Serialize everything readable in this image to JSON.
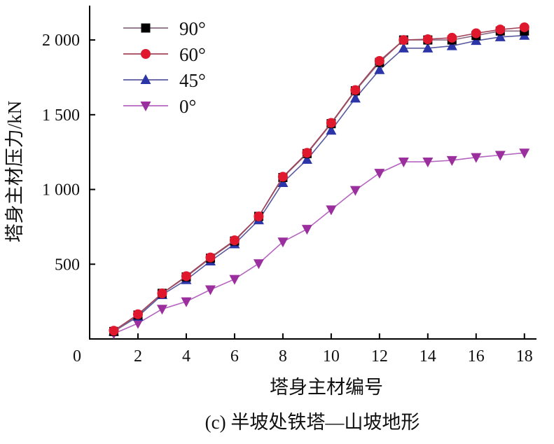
{
  "chart_data": {
    "type": "line",
    "title": "",
    "caption": "(c) 半坡处铁塔—山坡地形",
    "xlabel": "塔身主材编号",
    "ylabel": "塔身主材压力/kN",
    "x": [
      1,
      2,
      3,
      4,
      5,
      6,
      7,
      8,
      9,
      10,
      11,
      12,
      13,
      14,
      15,
      16,
      17,
      18
    ],
    "xlim": [
      0,
      18.5
    ],
    "ylim": [
      0,
      2230
    ],
    "x_ticks": [
      2,
      4,
      6,
      8,
      10,
      12,
      14,
      16,
      18
    ],
    "x_tick_labels": [
      "2",
      "4",
      "6",
      "8",
      "10",
      "12",
      "14",
      "16",
      "18"
    ],
    "y_ticks": [
      500,
      1000,
      1500,
      2000
    ],
    "y_tick_labels": [
      "500",
      "1 000",
      "1 500",
      "2 000"
    ],
    "origin_label": "0",
    "grid": false,
    "legend_position": "top-left",
    "series": [
      {
        "name": "90°",
        "marker": "square",
        "color": "#000000",
        "line_color": "#8a6a82",
        "values": [
          50,
          160,
          305,
          415,
          540,
          655,
          820,
          1080,
          1240,
          1440,
          1660,
          1850,
          2000,
          2000,
          2000,
          2030,
          2060,
          2060
        ]
      },
      {
        "name": "60°",
        "marker": "circle",
        "color": "#e0182d",
        "line_color": "#a0445a",
        "values": [
          55,
          165,
          305,
          420,
          545,
          660,
          820,
          1085,
          1245,
          1445,
          1665,
          1860,
          2000,
          2005,
          2015,
          2045,
          2070,
          2085
        ]
      },
      {
        "name": "45°",
        "marker": "triangle-up",
        "color": "#2b35a8",
        "line_color": "#5a5aa0",
        "values": [
          50,
          150,
          295,
          395,
          520,
          635,
          795,
          1045,
          1200,
          1395,
          1610,
          1800,
          1945,
          1945,
          1960,
          1995,
          2020,
          2030
        ]
      },
      {
        "name": "0°",
        "marker": "triangle-down",
        "color": "#9b2f9e",
        "line_color": "#b565c0",
        "values": [
          35,
          105,
          200,
          250,
          330,
          400,
          505,
          650,
          735,
          865,
          995,
          1110,
          1185,
          1185,
          1195,
          1215,
          1230,
          1245
        ]
      }
    ]
  }
}
